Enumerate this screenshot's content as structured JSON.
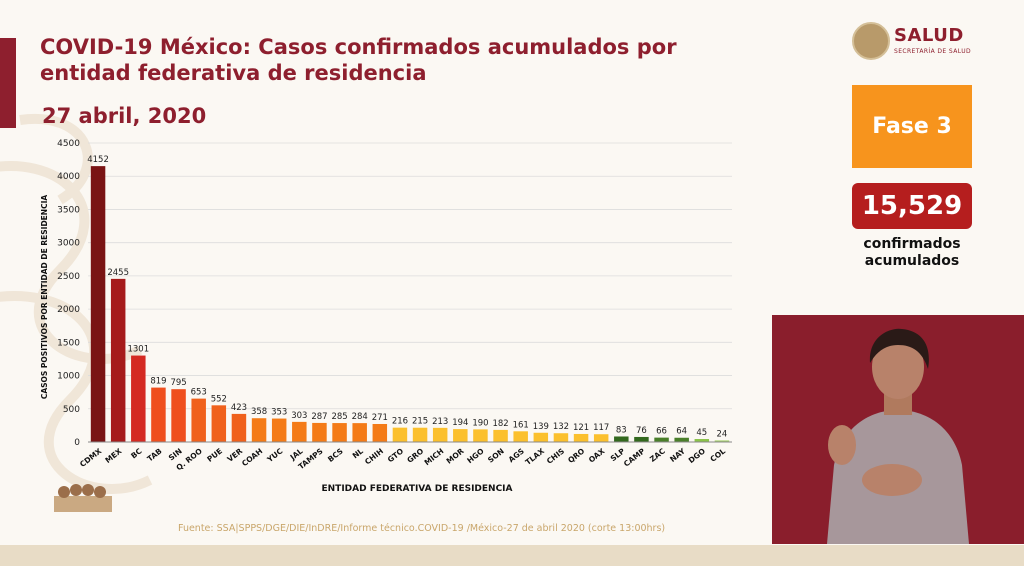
{
  "header": {
    "title": "COVID-19 México: Casos confirmados acumulados por entidad federativa de residencia",
    "date": "27 abril, 2020"
  },
  "logo": {
    "name": "SALUD",
    "subtitle": "SECRETARÍA DE SALUD"
  },
  "phase": {
    "label": "Fase 3",
    "color": "#f7941d"
  },
  "total": {
    "value": "15,529",
    "label_line1": "confirmados",
    "label_line2": "acumulados",
    "color": "#b51e1e"
  },
  "source": "Fuente: SSA|SPPS/DGE/DIE/InDRE/Informe técnico.COVID-19 /México-27 de abril 2020 (corte 13:00hrs)",
  "chart_data": {
    "type": "bar",
    "title": "COVID-19 México: Casos confirmados acumulados por entidad federativa de residencia",
    "xlabel": "ENTIDAD FEDERATIVA DE RESIDENCIA",
    "ylabel": "CASOS POSITIVOS POR ENTIDAD DE RESIDENCIA",
    "ylim": [
      0,
      4500
    ],
    "yticks": [
      0,
      500,
      1000,
      1500,
      2000,
      2500,
      3000,
      3500,
      4000,
      4500
    ],
    "grid": true,
    "categories": [
      "CDMX",
      "MEX",
      "BC",
      "TAB",
      "SIN",
      "Q. ROO",
      "PUE",
      "VER",
      "COAH",
      "YUC",
      "JAL",
      "TAMPS",
      "BCS",
      "NL",
      "CHIH",
      "GTO",
      "GRO",
      "MICH",
      "MOR",
      "HGO",
      "SON",
      "AGS",
      "TLAX",
      "CHIS",
      "QRO",
      "OAX",
      "SLP",
      "CAMP",
      "ZAC",
      "NAY",
      "DGO",
      "COL"
    ],
    "values": [
      4152,
      2455,
      1301,
      819,
      795,
      653,
      552,
      423,
      358,
      353,
      303,
      287,
      285,
      284,
      271,
      216,
      215,
      213,
      194,
      190,
      182,
      161,
      139,
      132,
      121,
      117,
      83,
      76,
      66,
      64,
      45,
      24
    ],
    "colors": [
      "#7a1414",
      "#a61b1b",
      "#d42a22",
      "#ef4f1e",
      "#ef4f1e",
      "#f0611c",
      "#f0611c",
      "#f0611c",
      "#f47b17",
      "#f47b17",
      "#f47b17",
      "#f47b17",
      "#f47b17",
      "#f47b17",
      "#f47b17",
      "#fbc02d",
      "#fbc02d",
      "#fbc02d",
      "#fbc02d",
      "#fbc02d",
      "#fbc02d",
      "#fbc02d",
      "#fbc02d",
      "#fbc02d",
      "#fbc02d",
      "#fbc02d",
      "#33691e",
      "#33691e",
      "#4a7f2a",
      "#4a7f2a",
      "#8bc34a",
      "#a5d16c"
    ]
  }
}
